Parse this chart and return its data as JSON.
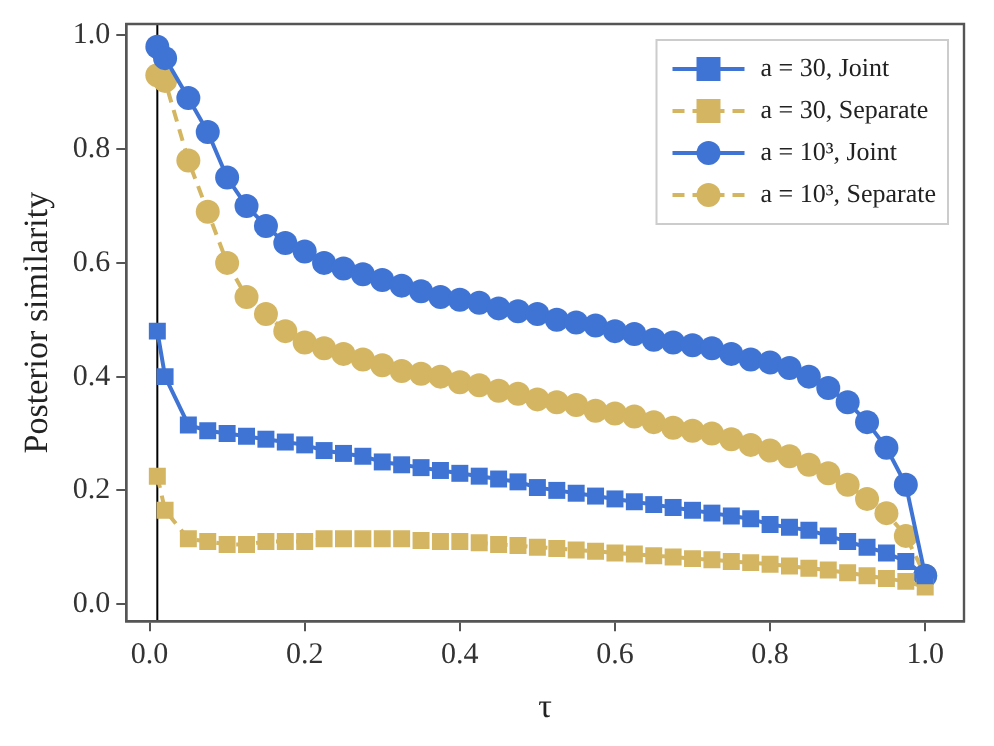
{
  "chart_data": {
    "type": "line",
    "xlabel": "τ",
    "ylabel": "Posterior similarity",
    "x": [
      0.01,
      0.02,
      0.05,
      0.075,
      0.1,
      0.125,
      0.15,
      0.175,
      0.2,
      0.225,
      0.25,
      0.275,
      0.3,
      0.325,
      0.35,
      0.375,
      0.4,
      0.425,
      0.45,
      0.475,
      0.5,
      0.525,
      0.55,
      0.575,
      0.6,
      0.625,
      0.65,
      0.675,
      0.7,
      0.725,
      0.75,
      0.775,
      0.8,
      0.825,
      0.85,
      0.875,
      0.9,
      0.925,
      0.95,
      0.975,
      1.0
    ],
    "series": [
      {
        "name": "a = 30, Joint",
        "color": "#3f74d4",
        "marker": "square",
        "line_style": "solid",
        "values": [
          0.48,
          0.4,
          0.315,
          0.305,
          0.3,
          0.295,
          0.29,
          0.285,
          0.28,
          0.27,
          0.265,
          0.26,
          0.25,
          0.245,
          0.24,
          0.235,
          0.23,
          0.225,
          0.22,
          0.215,
          0.205,
          0.2,
          0.195,
          0.19,
          0.185,
          0.18,
          0.175,
          0.17,
          0.165,
          0.16,
          0.155,
          0.15,
          0.14,
          0.135,
          0.13,
          0.12,
          0.11,
          0.1,
          0.09,
          0.075,
          0.05
        ]
      },
      {
        "name": "a = 30, Separate",
        "color": "#d4b562",
        "marker": "square",
        "line_style": "dashed",
        "values": [
          0.225,
          0.165,
          0.115,
          0.11,
          0.105,
          0.105,
          0.11,
          0.11,
          0.11,
          0.115,
          0.115,
          0.115,
          0.115,
          0.115,
          0.112,
          0.11,
          0.11,
          0.108,
          0.105,
          0.103,
          0.1,
          0.098,
          0.095,
          0.093,
          0.09,
          0.088,
          0.085,
          0.083,
          0.08,
          0.078,
          0.075,
          0.073,
          0.07,
          0.067,
          0.063,
          0.06,
          0.055,
          0.05,
          0.045,
          0.04,
          0.03
        ]
      },
      {
        "name": "a = 10³, Joint",
        "color": "#3f74d4",
        "marker": "circle",
        "line_style": "solid",
        "values": [
          0.98,
          0.96,
          0.89,
          0.83,
          0.75,
          0.7,
          0.665,
          0.635,
          0.62,
          0.6,
          0.59,
          0.58,
          0.57,
          0.56,
          0.55,
          0.54,
          0.535,
          0.53,
          0.52,
          0.515,
          0.51,
          0.5,
          0.495,
          0.49,
          0.48,
          0.475,
          0.465,
          0.46,
          0.455,
          0.45,
          0.44,
          0.43,
          0.425,
          0.415,
          0.4,
          0.38,
          0.355,
          0.32,
          0.275,
          0.21,
          0.05
        ]
      },
      {
        "name": "a = 10³, Separate",
        "color": "#d4b562",
        "marker": "circle",
        "line_style": "dashed",
        "values": [
          0.93,
          0.92,
          0.78,
          0.69,
          0.6,
          0.54,
          0.51,
          0.48,
          0.46,
          0.45,
          0.44,
          0.43,
          0.42,
          0.41,
          0.405,
          0.4,
          0.39,
          0.385,
          0.375,
          0.37,
          0.36,
          0.355,
          0.35,
          0.34,
          0.335,
          0.33,
          0.32,
          0.31,
          0.305,
          0.3,
          0.29,
          0.28,
          0.27,
          0.26,
          0.245,
          0.23,
          0.21,
          0.185,
          0.16,
          0.12,
          0.05
        ]
      }
    ],
    "xlim": [
      -0.03,
      1.05
    ],
    "xticks": [
      {
        "value": 0,
        "label": "0.0"
      },
      0.2,
      0.4,
      0.6,
      0.8,
      {
        "value": 1,
        "label": "1.0"
      }
    ],
    "ylim": [
      -0.03,
      1.02
    ],
    "yticks": [
      {
        "value": 0,
        "label": "0.0"
      },
      0.2,
      0.4,
      0.6,
      0.8,
      {
        "value": 1,
        "label": "1.0"
      }
    ],
    "ref_lines": [
      {
        "axis": "x",
        "value": 0.01,
        "color": "#000000",
        "line_style": "solid"
      }
    ],
    "grid": false,
    "legend": "top right"
  }
}
